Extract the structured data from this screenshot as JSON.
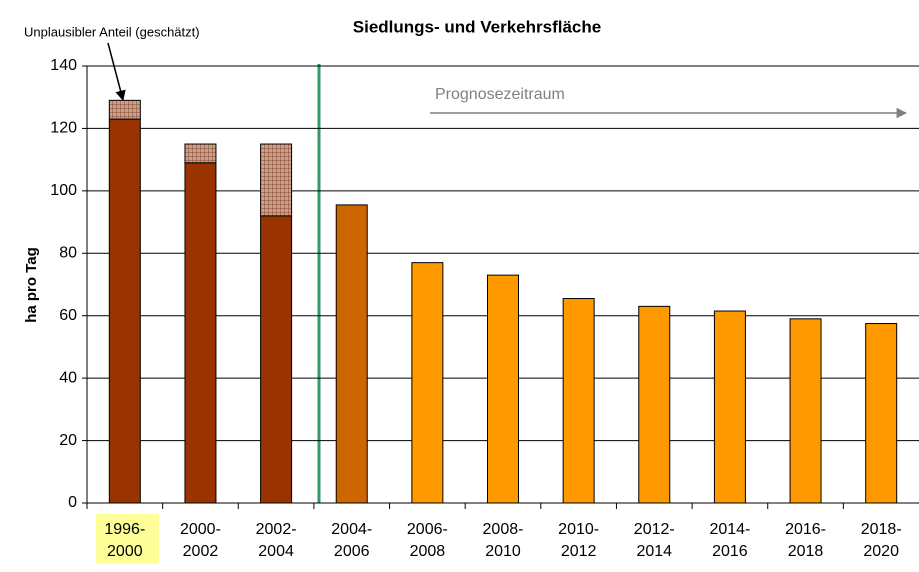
{
  "chart_data": {
    "type": "bar",
    "title": "Siedlungs- und Verkehrsfläche",
    "y_label": "ha pro Tag",
    "annotations": [
      "Prognosezeitraum"
    ],
    "categories": [
      "1996-2000",
      "2000-2002",
      "2002-2004",
      "2004-2006",
      "2006-2008",
      "2008-2010",
      "2010-2012",
      "2012-2014",
      "2014-2016",
      "2016-2018",
      "2018-2020"
    ],
    "series": [
      {
        "colors": [
          "#993300",
          "#993300",
          "#993300",
          "#cc6600",
          "#ff9900",
          "#ff9900",
          "#ff9900",
          "#ff9900",
          "#ff9900",
          "#ff9900",
          "#ff9900"
        ],
        "values": [
          123,
          109,
          92,
          95.5,
          77,
          73,
          65.5,
          63,
          61.5,
          59,
          57.5
        ]
      },
      {
        "name": "Unplausibler Anteil (geschätzt)",
        "color": "#b07a5f",
        "values": [
          6,
          6,
          23,
          null,
          null,
          null,
          null,
          null,
          null,
          null,
          null
        ]
      }
    ],
    "ylim": [
      0,
      140
    ],
    "yticks": [
      0,
      20,
      40,
      60,
      80,
      100,
      120,
      140
    ],
    "grid": true
  }
}
